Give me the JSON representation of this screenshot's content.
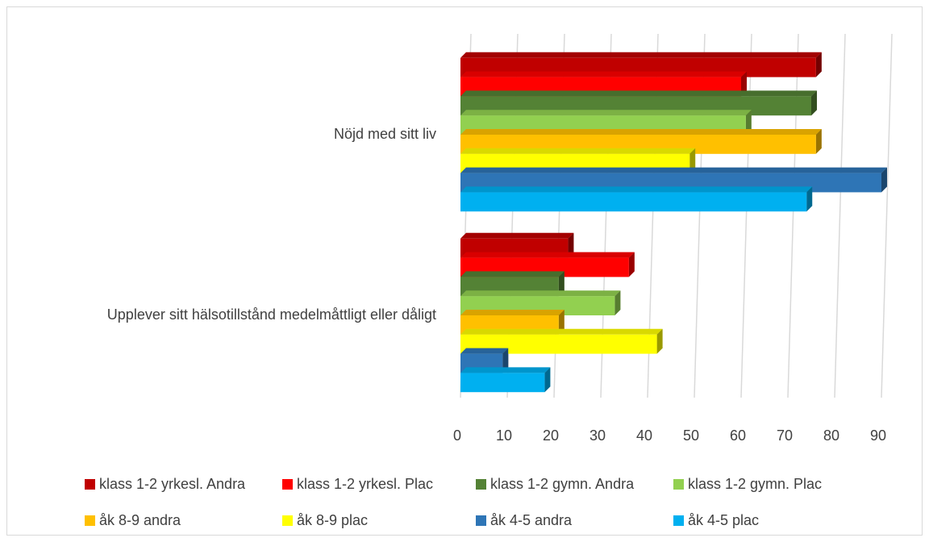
{
  "chart_data": {
    "type": "barh",
    "categories": [
      "Nöjd med sitt liv",
      "Upplever sitt hälsotillstånd medelmåttligt eller dåligt"
    ],
    "series": [
      {
        "name": "klass 1-2 yrkesl. Andra",
        "color": "#c00000",
        "values": [
          76,
          23
        ]
      },
      {
        "name": "klass 1-2 yrkesl. Plac",
        "color": "#ff0000",
        "values": [
          60,
          36
        ]
      },
      {
        "name": "klass 1-2 gymn. Andra",
        "color": "#548235",
        "values": [
          75,
          21
        ]
      },
      {
        "name": "klass 1-2 gymn. Plac",
        "color": "#92d050",
        "values": [
          61,
          33
        ]
      },
      {
        "name": "åk 8-9 andra",
        "color": "#ffc000",
        "values": [
          76,
          21
        ]
      },
      {
        "name": "åk 8-9 plac",
        "color": "#ffff00",
        "values": [
          49,
          42
        ]
      },
      {
        "name": "åk 4-5 andra",
        "color": "#2e75b6",
        "values": [
          90,
          9
        ]
      },
      {
        "name": "åk 4-5 plac",
        "color": "#00b0f0",
        "values": [
          74,
          18
        ]
      }
    ],
    "xlim": [
      0,
      90
    ],
    "xticks": [
      0,
      10,
      20,
      30,
      40,
      50,
      60,
      70,
      80,
      90
    ],
    "grid": true,
    "legend": "bottom"
  }
}
